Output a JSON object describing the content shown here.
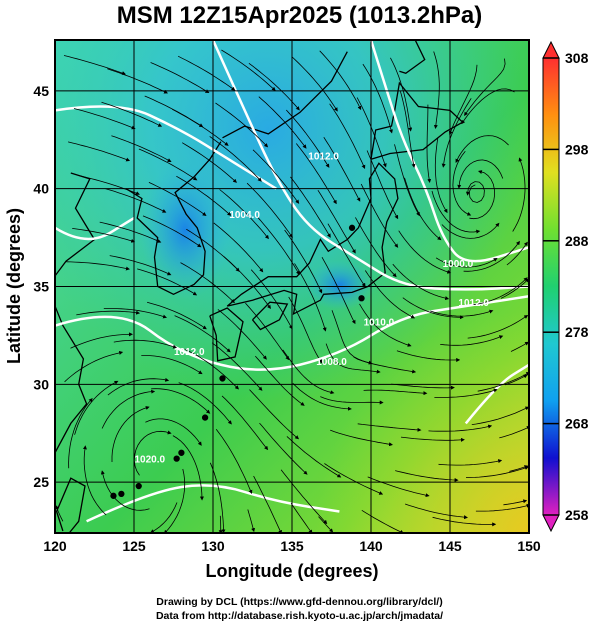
{
  "title": "MSM 12Z15Apr2025 (1013.2hPa)",
  "axes": {
    "xlabel": "Longitude (degrees)",
    "ylabel": "Latitude  (degrees)",
    "xlim": [
      120,
      150
    ],
    "ylim": [
      22.4,
      47.6
    ],
    "xticks": [
      {
        "value": 120,
        "label": "120"
      },
      {
        "value": 125,
        "label": "125"
      },
      {
        "value": 130,
        "label": "130"
      },
      {
        "value": 135,
        "label": "135"
      },
      {
        "value": 140,
        "label": "140"
      },
      {
        "value": 145,
        "label": "145"
      },
      {
        "value": 150,
        "label": "150"
      }
    ],
    "yticks": [
      {
        "value": 25,
        "label": "25"
      },
      {
        "value": 30,
        "label": "30"
      },
      {
        "value": 35,
        "label": "35"
      },
      {
        "value": 40,
        "label": "40"
      },
      {
        "value": 45,
        "label": "45"
      }
    ],
    "grid": true
  },
  "colorbar": {
    "min": 258,
    "max": 308,
    "ticks": [
      {
        "value": 258,
        "label": "258"
      },
      {
        "value": 268,
        "label": "268"
      },
      {
        "value": 278,
        "label": "278"
      },
      {
        "value": 288,
        "label": "288"
      },
      {
        "value": 298,
        "label": "298"
      },
      {
        "value": 308,
        "label": "308"
      }
    ],
    "colors": [
      "#e020c0",
      "#1010d0",
      "#10a0f0",
      "#20c8d0",
      "#20d070",
      "#70e030",
      "#e0e020",
      "#ff9010",
      "#ff3030"
    ]
  },
  "isobar_labels": [
    {
      "text": "1008.0",
      "lon": 137.5,
      "lat": 31.0
    },
    {
      "text": "1000.0",
      "lon": 145.5,
      "lat": 36.0
    },
    {
      "text": "1004.0",
      "lon": 132.0,
      "lat": 38.5
    },
    {
      "text": "1012.0",
      "lon": 128.5,
      "lat": 31.5
    },
    {
      "text": "1012.0",
      "lon": 146.5,
      "lat": 34.0
    },
    {
      "text": "1020.0",
      "lon": 126.0,
      "lat": 26.0
    },
    {
      "text": "1012.0",
      "lon": 137.0,
      "lat": 41.5
    },
    {
      "text": "1010.0",
      "lon": 140.5,
      "lat": 33.0
    }
  ],
  "credits": {
    "line1": "Drawing by DCL (https://www.gfd-dennou.org/library/dcl/)",
    "line2": "Data from http://database.rish.kyoto-u.ac.jp/arch/jmadata/"
  }
}
